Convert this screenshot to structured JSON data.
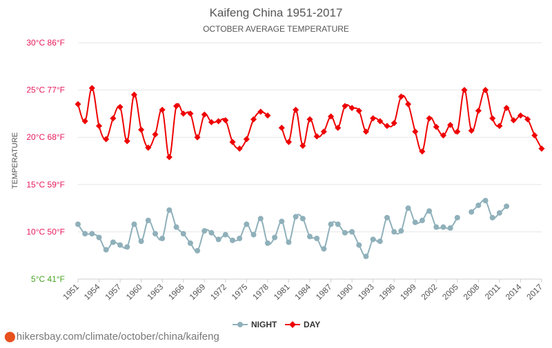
{
  "colors": {
    "day": "#ee0000",
    "night": "#8fb0ba",
    "grid": "#e6e6e6",
    "celsius_top": "#e6195a",
    "celsius_bottom": "#46a320",
    "text": "#555555"
  },
  "watermark": "hikersbay.com/climate/october/china/kaifeng",
  "chart_data": {
    "type": "line",
    "title": "Kaifeng China 1951-2017",
    "subtitle": "OCTOBER AVERAGE TEMPERATURE",
    "ylabel": "TEMPERATURE",
    "xlabel": "",
    "ylim": [
      5,
      30
    ],
    "xlim": [
      1951,
      2017
    ],
    "y_ticks": [
      {
        "value": 30,
        "label": "30°C 86°F"
      },
      {
        "value": 25,
        "label": "25°C 77°F"
      },
      {
        "value": 20,
        "label": "20°C 68°F"
      },
      {
        "value": 15,
        "label": "15°C 59°F"
      },
      {
        "value": 10,
        "label": "10°C 50°F"
      },
      {
        "value": 5,
        "label": "5°C 41°F"
      }
    ],
    "x_tick_years": [
      1951,
      1954,
      1957,
      1960,
      1963,
      1966,
      1969,
      1972,
      1975,
      1978,
      1981,
      1984,
      1987,
      1990,
      1993,
      1996,
      1999,
      2002,
      2005,
      2008,
      2011,
      2014,
      2017
    ],
    "legend": [
      "NIGHT",
      "DAY"
    ],
    "x": [
      1951,
      1952,
      1953,
      1954,
      1955,
      1956,
      1957,
      1958,
      1959,
      1960,
      1961,
      1962,
      1963,
      1964,
      1965,
      1966,
      1967,
      1968,
      1969,
      1970,
      1971,
      1972,
      1973,
      1974,
      1975,
      1976,
      1977,
      1978,
      1979,
      1980,
      1981,
      1982,
      1983,
      1984,
      1985,
      1986,
      1987,
      1988,
      1989,
      1990,
      1991,
      1992,
      1993,
      1994,
      1995,
      1996,
      1997,
      1998,
      1999,
      2000,
      2001,
      2002,
      2003,
      2004,
      2005,
      2006,
      2007,
      2008,
      2009,
      2010,
      2011,
      2012,
      2013,
      2014,
      2015,
      2016,
      2017
    ],
    "series": [
      {
        "name": "DAY",
        "values": [
          23.5,
          21.7,
          25.2,
          21.2,
          19.8,
          22.0,
          23.2,
          19.6,
          24.5,
          20.8,
          18.9,
          20.3,
          22.9,
          17.9,
          23.3,
          22.5,
          22.5,
          20.0,
          22.4,
          21.6,
          21.7,
          21.8,
          19.5,
          18.8,
          19.8,
          21.9,
          22.7,
          22.3,
          null,
          21.0,
          19.5,
          22.9,
          19.1,
          21.9,
          20.1,
          20.6,
          22.2,
          21.0,
          23.3,
          23.1,
          22.8,
          20.6,
          22.0,
          21.7,
          21.2,
          21.5,
          24.3,
          23.5,
          20.6,
          18.5,
          22.0,
          21.1,
          20.2,
          21.3,
          20.6,
          25.0,
          20.7,
          22.8,
          25.0,
          22.0,
          21.2,
          23.1,
          21.8,
          22.3,
          21.9,
          20.2,
          18.8
        ]
      },
      {
        "name": "NIGHT",
        "values": [
          10.8,
          9.8,
          9.8,
          9.4,
          8.1,
          8.9,
          8.6,
          8.4,
          10.8,
          9.0,
          11.2,
          9.8,
          9.3,
          12.3,
          10.5,
          9.8,
          8.8,
          8.0,
          10.1,
          9.9,
          9.2,
          9.7,
          9.1,
          9.3,
          10.8,
          9.7,
          11.4,
          8.8,
          9.4,
          11.1,
          8.9,
          11.6,
          11.4,
          9.5,
          9.3,
          8.2,
          10.8,
          10.8,
          9.9,
          10.0,
          8.6,
          7.4,
          9.2,
          9.0,
          11.5,
          10.0,
          10.1,
          12.5,
          11.0,
          11.2,
          12.2,
          10.5,
          10.5,
          10.4,
          11.5,
          null,
          12.1,
          12.8,
          13.3,
          11.5,
          12.0,
          12.7,
          null,
          null,
          null,
          null,
          null
        ]
      }
    ]
  }
}
